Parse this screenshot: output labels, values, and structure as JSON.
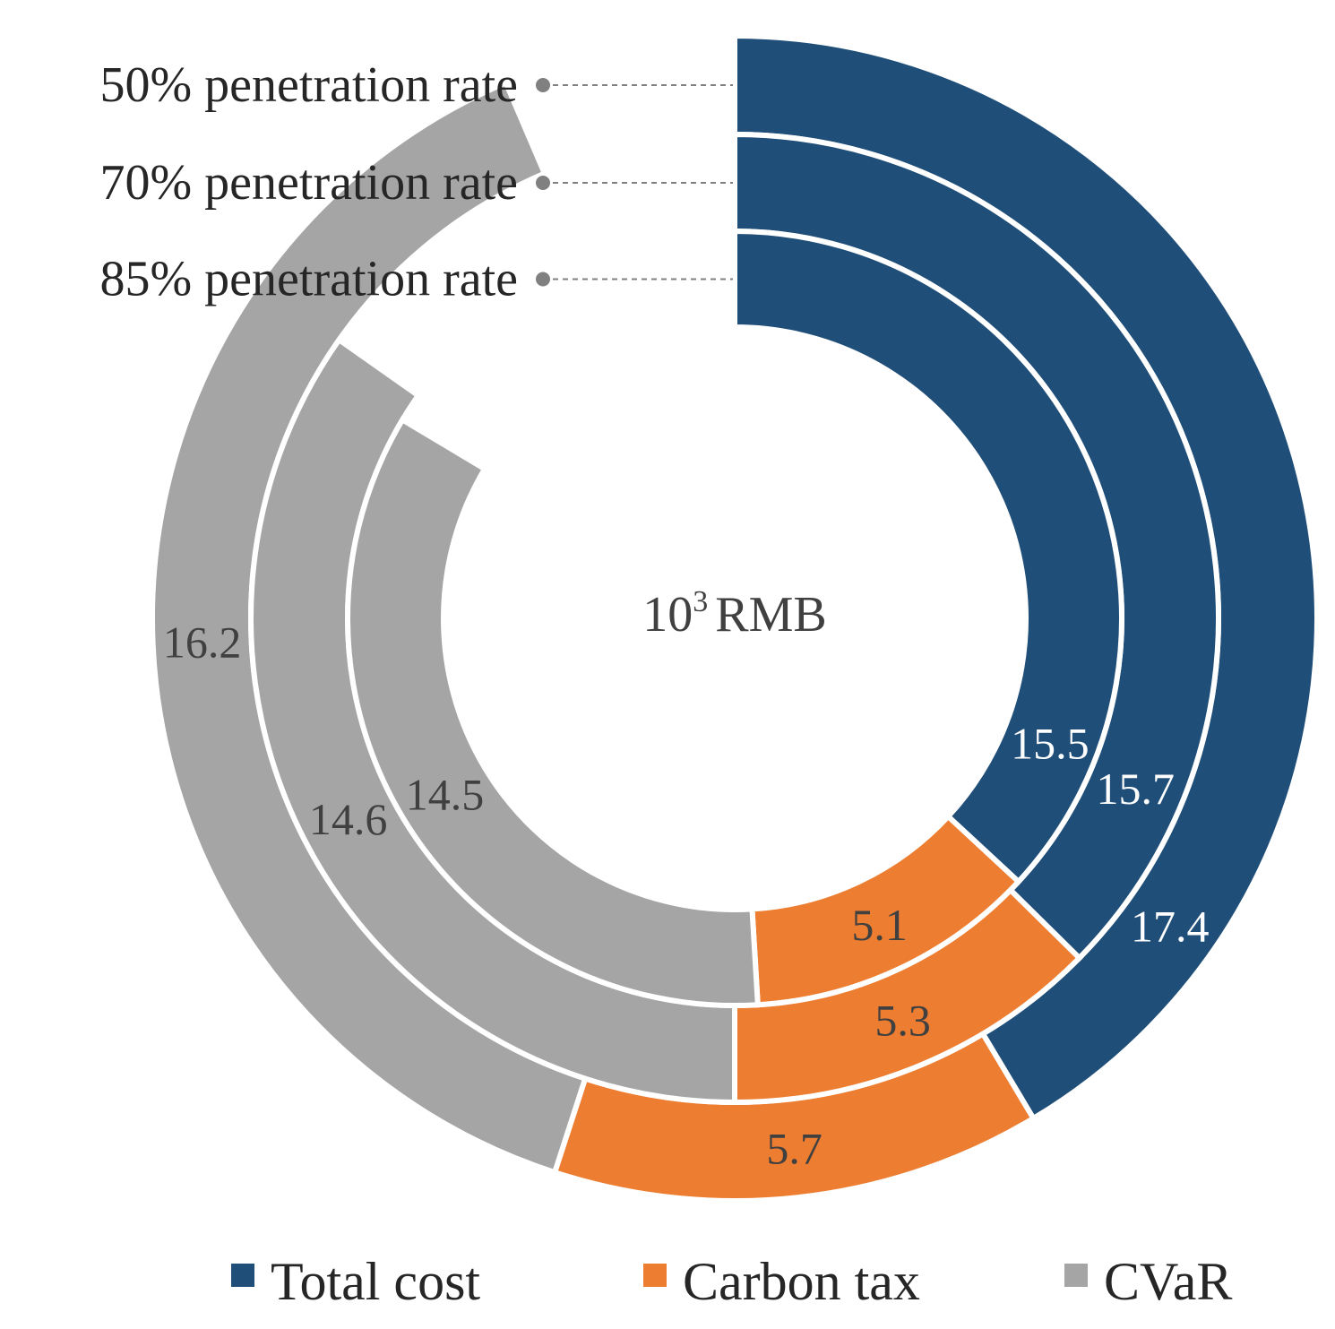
{
  "chart_data": {
    "type": "radial-bar",
    "unit": {
      "base": "10",
      "exponent": "3",
      "currency": "RMB"
    },
    "series": [
      {
        "name": "Total cost",
        "color": "#1f4e79"
      },
      {
        "name": "Carbon tax",
        "color": "#ed7d31"
      },
      {
        "name": "CVaR",
        "color": "#a5a5a5"
      }
    ],
    "rings": [
      {
        "label": "50% penetration rate",
        "values": [
          17.4,
          5.7,
          16.2
        ],
        "value_labels": [
          "17.4",
          "5.7",
          "16.2"
        ]
      },
      {
        "label": "70% penetration rate",
        "values": [
          15.7,
          5.3,
          14.6
        ],
        "value_labels": [
          "15.7",
          "5.3",
          "14.6"
        ]
      },
      {
        "label": "85% penetration rate",
        "values": [
          15.5,
          5.1,
          14.5
        ],
        "value_labels": [
          "15.5",
          "5.1",
          "14.5"
        ]
      }
    ],
    "label_colors": {
      "dark_segment": "#ffffff",
      "light_segment": "#404040"
    },
    "leader_color": "#808080",
    "legend": {
      "position": "bottom",
      "items": [
        "Total cost",
        "Carbon tax",
        "CVaR"
      ]
    }
  }
}
